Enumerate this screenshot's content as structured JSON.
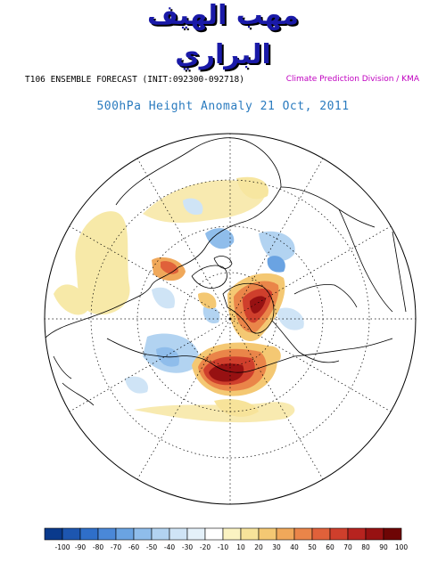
{
  "watermark": {
    "line1": "مهب الهيف",
    "line2": "البراري"
  },
  "header": {
    "left": "T106 ENSEMBLE FORECAST (INIT:092300-092718)",
    "right": "Climate Prediction Division / KMA"
  },
  "title": "500hPa Height Anomaly 21 Oct, 2011",
  "colorbar": {
    "labels": [
      "-100",
      "-90",
      "-80",
      "-70",
      "-60",
      "-50",
      "-40",
      "-30",
      "-20",
      "-10",
      "10",
      "20",
      "30",
      "40",
      "50",
      "60",
      "70",
      "80",
      "90",
      "100"
    ],
    "colors": [
      "#0a3a8c",
      "#1d56b0",
      "#2f6fc9",
      "#4a88d8",
      "#6aa3e2",
      "#8fbdeb",
      "#b2d3f1",
      "#cfe4f6",
      "#e4f1fa",
      "#ffffff",
      "#fbf3c2",
      "#f7e39a",
      "#f4c873",
      "#f0a85a",
      "#ea8549",
      "#e0613a",
      "#cf3f2c",
      "#b7231f",
      "#971112",
      "#6e0505"
    ]
  },
  "colors": {
    "title": "#2a7bbf",
    "credit": "#c000c0",
    "watermark": "#1a1aa8"
  }
}
